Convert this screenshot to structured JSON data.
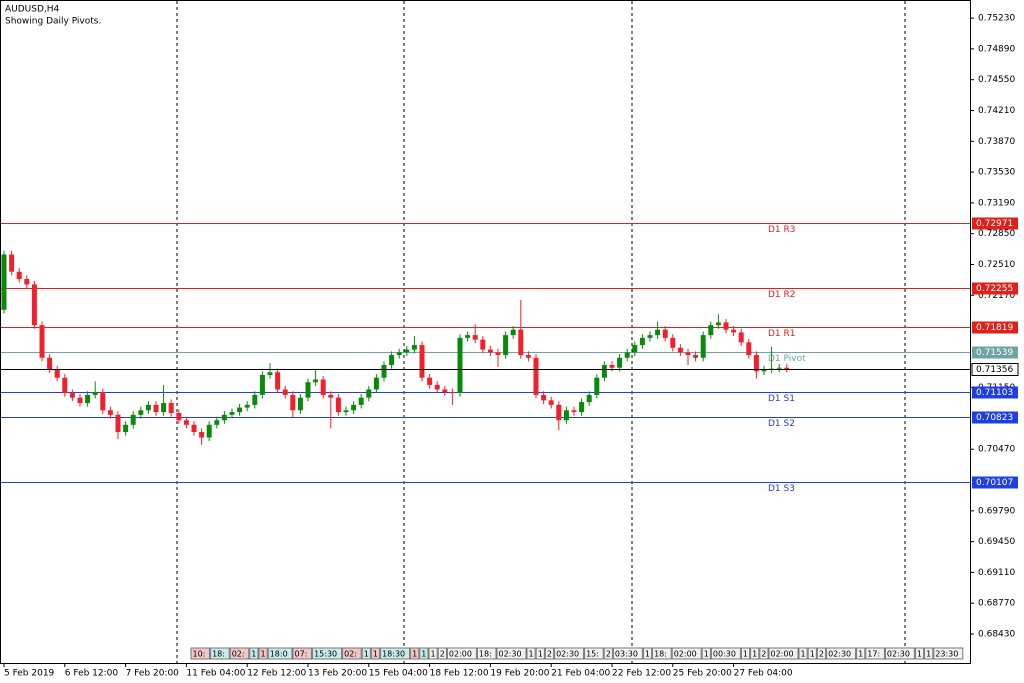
{
  "chart_data": {
    "type": "candlestick",
    "title": "AUDUSD,H4",
    "subtitle": "Showing Daily Pivots.",
    "up_color": "#0a8a0a",
    "down_color": "#f2202c",
    "ylim": [
      0.6811,
      0.7543
    ],
    "yticks": [
      {
        "value": 0.7523,
        "label": "0.75230"
      },
      {
        "value": 0.7489,
        "label": "0.74890"
      },
      {
        "value": 0.7455,
        "label": "0.74550"
      },
      {
        "value": 0.7421,
        "label": "0.74210"
      },
      {
        "value": 0.7387,
        "label": "0.73870"
      },
      {
        "value": 0.7353,
        "label": "0.73530"
      },
      {
        "value": 0.7319,
        "label": "0.73190"
      },
      {
        "value": 0.7285,
        "label": "0.72850"
      },
      {
        "value": 0.7251,
        "label": "0.72510"
      },
      {
        "value": 0.7217,
        "label": "0.72170"
      },
      {
        "value": 0.7115,
        "label": "0.71150"
      },
      {
        "value": 0.7047,
        "label": "0.70470"
      },
      {
        "value": 0.6979,
        "label": "0.69790"
      },
      {
        "value": 0.6945,
        "label": "0.69450"
      },
      {
        "value": 0.6911,
        "label": "0.69110"
      },
      {
        "value": 0.6877,
        "label": "0.68770"
      },
      {
        "value": 0.6843,
        "label": "0.68430"
      }
    ],
    "categories": [
      "5 Feb 2019",
      null,
      null,
      null,
      null,
      null,
      null,
      null,
      "6 Feb 12:00",
      null,
      null,
      null,
      null,
      null,
      null,
      null,
      "7 Feb 20:00",
      null,
      null,
      null,
      null,
      null,
      null,
      null,
      "11 Feb 04:00",
      null,
      null,
      null,
      null,
      null,
      null,
      null,
      "12 Feb 12:00",
      null,
      null,
      null,
      null,
      null,
      null,
      null,
      "13 Feb 20:00",
      null,
      null,
      null,
      null,
      null,
      null,
      null,
      "15 Feb 04:00",
      null,
      null,
      null,
      null,
      null,
      null,
      null,
      "18 Feb 12:00",
      null,
      null,
      null,
      null,
      null,
      null,
      null,
      "19 Feb 20:00",
      null,
      null,
      null,
      null,
      null,
      null,
      null,
      "21 Feb 04:00",
      null,
      null,
      null,
      null,
      null,
      null,
      null,
      "22 Feb 12:00",
      null,
      null,
      null,
      null,
      null,
      null,
      null,
      "25 Feb 20:00",
      null,
      null,
      null,
      null,
      null,
      null,
      null,
      "27 Feb 04:00",
      null,
      null,
      null,
      null,
      null,
      null,
      null
    ],
    "open": [
      0.7201,
      0.7262,
      0.7243,
      0.7235,
      0.7229,
      0.7184,
      0.7148,
      0.7135,
      0.7126,
      0.7109,
      0.7104,
      0.7098,
      0.7107,
      0.711,
      0.709,
      0.7085,
      0.7066,
      0.7074,
      0.7085,
      0.709,
      0.7096,
      0.7088,
      0.7098,
      0.7087,
      0.7079,
      0.7074,
      0.7066,
      0.706,
      0.7074,
      0.7079,
      0.7085,
      0.7088,
      0.7093,
      0.7096,
      0.7107,
      0.7129,
      0.7132,
      0.7113,
      0.7107,
      0.709,
      0.7104,
      0.7121,
      0.7124,
      0.7107,
      0.7104,
      0.7088,
      0.709,
      0.7096,
      0.7104,
      0.7113,
      0.7126,
      0.714,
      0.7151,
      0.7154,
      0.7157,
      0.7162,
      0.7126,
      0.7118,
      0.7113,
      0.711,
      0.7109,
      0.717,
      0.7173,
      0.7168,
      0.7157,
      0.7154,
      0.7151,
      0.7173,
      0.7179,
      0.7151,
      0.7148,
      0.7107,
      0.7101,
      0.7096,
      0.7079,
      0.709,
      0.7088,
      0.7099,
      0.7107,
      0.7126,
      0.714,
      0.7137,
      0.7148,
      0.7154,
      0.7162,
      0.717,
      0.7173,
      0.7179,
      0.717,
      0.7159,
      0.7154,
      0.7151,
      0.7148,
      0.7173,
      0.7184,
      0.7187,
      0.7179,
      0.7176,
      0.7165,
      0.7151,
      0.7133,
      0.7135,
      0.7136,
      0.7137
    ],
    "high": [
      0.7266,
      0.7266,
      0.7247,
      0.7239,
      0.7233,
      0.7188,
      0.7152,
      0.7139,
      0.713,
      0.7113,
      0.7108,
      0.7111,
      0.7122,
      0.7114,
      0.7094,
      0.7089,
      0.7078,
      0.7089,
      0.7094,
      0.71,
      0.71,
      0.7118,
      0.7102,
      0.7091,
      0.7083,
      0.7078,
      0.707,
      0.7078,
      0.7083,
      0.7089,
      0.7092,
      0.7097,
      0.71,
      0.7111,
      0.7133,
      0.7142,
      0.7136,
      0.7117,
      0.7111,
      0.7108,
      0.7125,
      0.7136,
      0.7128,
      0.7111,
      0.7108,
      0.7094,
      0.71,
      0.7108,
      0.7117,
      0.713,
      0.7144,
      0.7155,
      0.7158,
      0.7161,
      0.7172,
      0.7166,
      0.713,
      0.7122,
      0.7117,
      0.7114,
      0.7174,
      0.7177,
      0.7185,
      0.7172,
      0.7161,
      0.7158,
      0.7177,
      0.7183,
      0.7212,
      0.7155,
      0.7152,
      0.7111,
      0.7105,
      0.71,
      0.7094,
      0.7094,
      0.7103,
      0.7111,
      0.713,
      0.7144,
      0.7144,
      0.7152,
      0.7158,
      0.7166,
      0.7174,
      0.7177,
      0.7188,
      0.7183,
      0.7174,
      0.7163,
      0.7158,
      0.7155,
      0.7177,
      0.7188,
      0.7196,
      0.7191,
      0.7183,
      0.718,
      0.7169,
      0.7155,
      0.7139,
      0.716,
      0.7141,
      0.7141
    ],
    "low": [
      0.7197,
      0.7239,
      0.7231,
      0.7225,
      0.718,
      0.7144,
      0.7131,
      0.7122,
      0.7105,
      0.71,
      0.7094,
      0.7094,
      0.7103,
      0.7086,
      0.7081,
      0.7058,
      0.7062,
      0.707,
      0.7081,
      0.7086,
      0.7084,
      0.7084,
      0.7083,
      0.7075,
      0.707,
      0.7062,
      0.7052,
      0.7056,
      0.707,
      0.7075,
      0.7081,
      0.7084,
      0.7089,
      0.7092,
      0.7103,
      0.7125,
      0.7109,
      0.7103,
      0.7082,
      0.7086,
      0.71,
      0.7117,
      0.7103,
      0.707,
      0.7084,
      0.7084,
      0.7086,
      0.7092,
      0.71,
      0.7109,
      0.7122,
      0.7136,
      0.7147,
      0.715,
      0.7153,
      0.7122,
      0.7114,
      0.7109,
      0.7106,
      0.7096,
      0.7105,
      0.7166,
      0.7164,
      0.7153,
      0.715,
      0.7138,
      0.7147,
      0.7169,
      0.7147,
      0.7144,
      0.7103,
      0.7097,
      0.7092,
      0.7068,
      0.7075,
      0.7084,
      0.7084,
      0.7095,
      0.7103,
      0.7122,
      0.7133,
      0.7133,
      0.7144,
      0.715,
      0.7158,
      0.7166,
      0.7169,
      0.7166,
      0.7155,
      0.715,
      0.714,
      0.7144,
      0.7144,
      0.7169,
      0.718,
      0.7175,
      0.7172,
      0.7161,
      0.7147,
      0.7125,
      0.7129,
      0.7131,
      0.7132,
      0.7132
    ],
    "close": [
      0.7262,
      0.7243,
      0.7235,
      0.7229,
      0.7184,
      0.7148,
      0.7135,
      0.7126,
      0.7109,
      0.7104,
      0.7098,
      0.7107,
      0.711,
      0.709,
      0.7085,
      0.7066,
      0.7074,
      0.7085,
      0.709,
      0.7096,
      0.7088,
      0.7098,
      0.7087,
      0.7079,
      0.7074,
      0.7066,
      0.706,
      0.7074,
      0.7079,
      0.7085,
      0.7088,
      0.7093,
      0.7096,
      0.7107,
      0.7129,
      0.7132,
      0.7113,
      0.7107,
      0.709,
      0.7104,
      0.7121,
      0.7124,
      0.7107,
      0.7104,
      0.7088,
      0.709,
      0.7096,
      0.7104,
      0.7113,
      0.7126,
      0.714,
      0.7151,
      0.7154,
      0.7157,
      0.7162,
      0.7126,
      0.7118,
      0.7113,
      0.711,
      0.7109,
      0.717,
      0.7173,
      0.7168,
      0.7157,
      0.7154,
      0.7151,
      0.7173,
      0.7179,
      0.7151,
      0.7148,
      0.7107,
      0.7101,
      0.7096,
      0.7079,
      0.709,
      0.7088,
      0.7099,
      0.7107,
      0.7126,
      0.714,
      0.7137,
      0.7148,
      0.7154,
      0.7162,
      0.717,
      0.7173,
      0.7179,
      0.717,
      0.7159,
      0.7154,
      0.7151,
      0.7148,
      0.7173,
      0.7184,
      0.7187,
      0.7179,
      0.7176,
      0.7165,
      0.7151,
      0.7133,
      0.7135,
      0.7136,
      0.7137,
      0.71356
    ],
    "pivots": [
      {
        "name": "D1 R3",
        "value": 0.72971,
        "color": "#e0201b"
      },
      {
        "name": "D1 R2",
        "value": 0.72255,
        "color": "#e0201b"
      },
      {
        "name": "D1 R1",
        "value": 0.71819,
        "color": "#e0201b"
      },
      {
        "name": "D1 Pivot",
        "value": 0.71539,
        "color": "#6fa3a3"
      },
      {
        "name": "D1 S1",
        "value": 0.71103,
        "color": "#1f3fe0"
      },
      {
        "name": "D1 S2",
        "value": 0.70823,
        "color": "#1f3fe0"
      },
      {
        "name": "D1 S3",
        "value": 0.70107,
        "color": "#1f3fe0"
      }
    ],
    "time_boxes": [
      "10:",
      "18:",
      "02:",
      "1",
      "1",
      "18:0",
      "07:",
      "15:30",
      "02:",
      "1",
      "1",
      "18:30",
      "1",
      "1",
      "1",
      "2",
      "02:00",
      "18:",
      "02:30",
      "1",
      "1",
      "2",
      "02:30",
      "15:",
      "2",
      "03:30",
      "1",
      "18:",
      "02:00",
      "1",
      "00:30",
      "1",
      "1",
      "2",
      "02:00",
      "1",
      "1",
      "2",
      "02:30",
      "1",
      "17:",
      "02:30",
      "1",
      "1",
      "23:30"
    ]
  }
}
